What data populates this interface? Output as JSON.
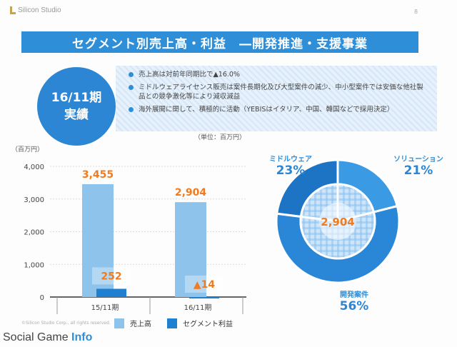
{
  "header": {
    "logo_text": "Silicon Studio",
    "page_number": "8"
  },
  "title": "セグメント別売上高・利益　―開発推進・支援事業",
  "period_badge": {
    "line1": "16/11期",
    "line2": "実績"
  },
  "bullets": [
    "売上高は対前年同期比で▲16.0%",
    "ミドルウェアライセンス販売は案件長期化及び大型案件の減少、中小型案件では安価な他社製品との競争激化等により減収減益",
    "海外展開に関して、積極的に活動（YEBISはイタリア、中国、韓国などで採用決定）"
  ],
  "unit_note": "（単位：百万円）",
  "colors": {
    "sales": "#8ec3ec",
    "profit": "#1f7fd1",
    "title": "#2e8fd8",
    "value_label": "#f07b20"
  },
  "chart_data": [
    {
      "type": "bar",
      "ylabel": "（百万円）",
      "ylim": [
        0,
        4000
      ],
      "y_ticks": [
        "4,000",
        "3,000",
        "2,000",
        "1,000",
        "0"
      ],
      "categories": [
        "15/11期",
        "16/11期"
      ],
      "series": [
        {
          "name": "売上高",
          "values": [
            3455,
            2904
          ],
          "labels": [
            "3,455",
            "2,904"
          ]
        },
        {
          "name": "セグメント利益",
          "values": [
            252,
            -14
          ],
          "labels": [
            "252",
            "▲14"
          ]
        }
      ],
      "legend": "bottom"
    },
    {
      "type": "pie",
      "center_label": "2,904",
      "slices": [
        {
          "name": "ミドルウェア",
          "pct": 23,
          "label": "23%"
        },
        {
          "name": "ソリューション",
          "pct": 21,
          "label": "21%"
        },
        {
          "name": "開発案件",
          "pct": 56,
          "label": "56%"
        }
      ]
    }
  ],
  "copyright": "©Silicon Studio Corp., all rights reserved.",
  "watermark": {
    "prefix": "Social Game ",
    "brand": "Info"
  }
}
